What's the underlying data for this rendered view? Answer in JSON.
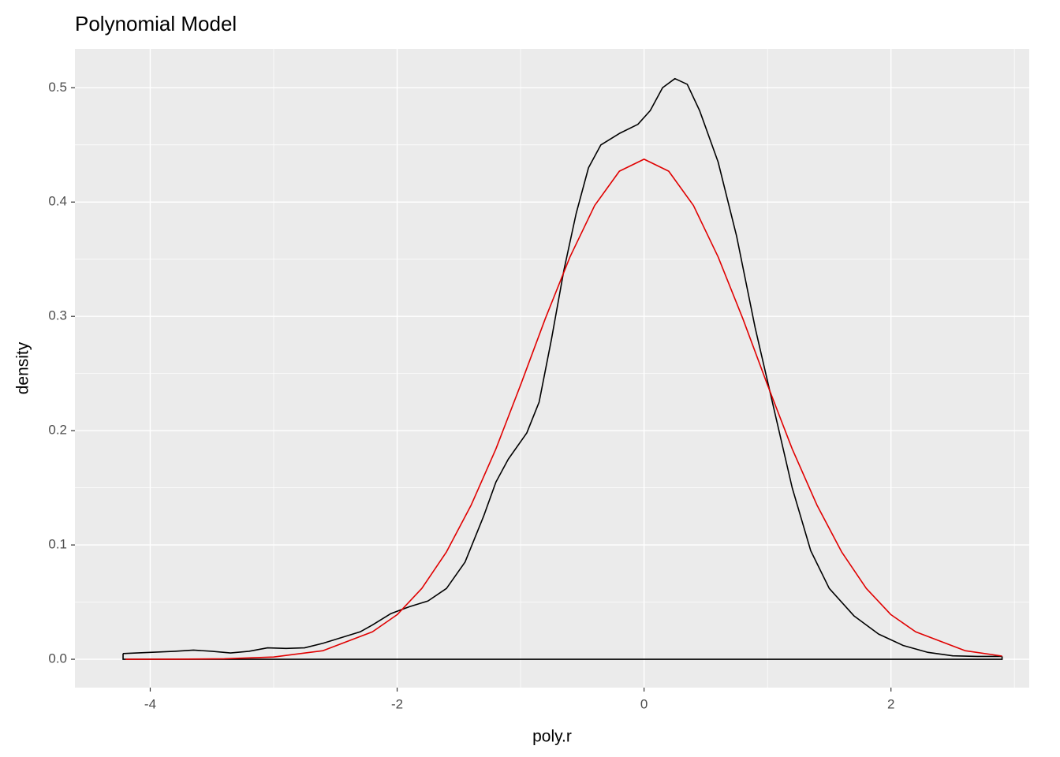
{
  "chart_data": {
    "type": "line",
    "title": "Polynomial Model",
    "x_label": "poly.r",
    "y_label": "density",
    "xlim": [
      -4.61,
      3.12
    ],
    "ylim": [
      -0.0248,
      0.534
    ],
    "xticks": [
      -4,
      -2,
      0,
      2
    ],
    "yticks": [
      {
        "value": 0,
        "label": "0.0"
      },
      0.1,
      0.2,
      0.3,
      0.4,
      0.5
    ],
    "x_minor_ticks": [
      -3,
      -1,
      1,
      3
    ],
    "y_minor_ticks": [
      0.05,
      0.15,
      0.25,
      0.35,
      0.45
    ],
    "grid": true,
    "series": [
      {
        "color": "#000000",
        "x": [
          -4.22,
          -4.0,
          -3.8,
          -3.65,
          -3.5,
          -3.35,
          -3.2,
          -3.05,
          -2.9,
          -2.75,
          -2.6,
          -2.45,
          -2.3,
          -2.2,
          -2.05,
          -1.9,
          -1.75,
          -1.6,
          -1.45,
          -1.3,
          -1.2,
          -1.1,
          -0.95,
          -0.85,
          -0.75,
          -0.65,
          -0.55,
          -0.45,
          -0.35,
          -0.2,
          -0.05,
          0.05,
          0.15,
          0.25,
          0.35,
          0.45,
          0.6,
          0.75,
          0.9,
          1.05,
          1.2,
          1.35,
          1.5,
          1.7,
          1.9,
          2.1,
          2.3,
          2.5,
          2.7,
          2.9
        ],
        "values": [
          0.005,
          0.006,
          0.007,
          0.008,
          0.007,
          0.0055,
          0.007,
          0.01,
          0.0095,
          0.01,
          0.014,
          0.019,
          0.024,
          0.03,
          0.04,
          0.046,
          0.051,
          0.062,
          0.085,
          0.125,
          0.155,
          0.175,
          0.198,
          0.225,
          0.28,
          0.34,
          0.39,
          0.43,
          0.45,
          0.46,
          0.468,
          0.48,
          0.5,
          0.508,
          0.503,
          0.48,
          0.435,
          0.37,
          0.29,
          0.22,
          0.15,
          0.095,
          0.062,
          0.038,
          0.022,
          0.012,
          0.006,
          0.003,
          0.0025,
          0.0025
        ]
      },
      {
        "color": "#e00000",
        "x": [
          -4.2,
          -3.8,
          -3.4,
          -3.0,
          -2.6,
          -2.2,
          -2.0,
          -1.8,
          -1.6,
          -1.4,
          -1.2,
          -1.0,
          -0.8,
          -0.6,
          -0.4,
          -0.2,
          0,
          0.2,
          0.4,
          0.6,
          0.8,
          1.0,
          1.2,
          1.4,
          1.6,
          1.8,
          2.0,
          2.2,
          2.6,
          2.9
        ],
        "values": [
          0.0,
          0.0001,
          0.0004,
          0.002,
          0.0075,
          0.024,
          0.039,
          0.062,
          0.094,
          0.135,
          0.184,
          0.24,
          0.298,
          0.352,
          0.397,
          0.427,
          0.4375,
          0.427,
          0.397,
          0.352,
          0.298,
          0.24,
          0.184,
          0.135,
          0.094,
          0.062,
          0.039,
          0.024,
          0.0075,
          0.0028
        ]
      }
    ]
  }
}
